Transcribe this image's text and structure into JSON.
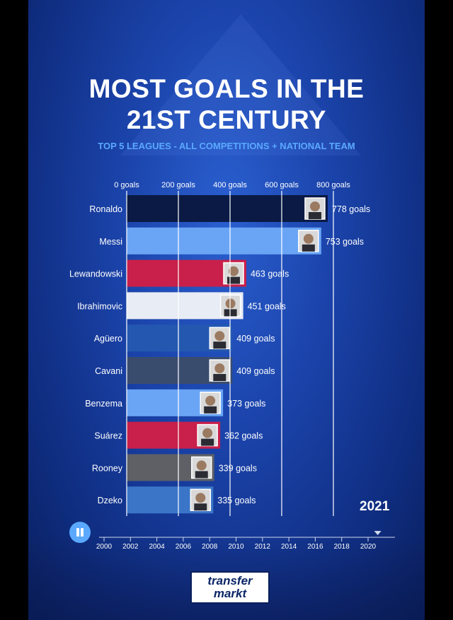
{
  "title_line1": "MOST GOALS IN THE",
  "title_line2": "21ST CENTURY",
  "subtitle": "TOP 5 LEAGUES - ALL COMPETITIONS + NATIONAL TEAM",
  "current_year": "2021",
  "logo": {
    "line1": "transfer",
    "line2": "markt"
  },
  "colors": {
    "subtitle": "#5aa9ff",
    "gridline": "#ffffff",
    "pause_button": "#5aa9ff"
  },
  "chart_data": {
    "type": "bar",
    "orientation": "horizontal",
    "x_ticks": [
      0,
      200,
      400,
      600,
      800
    ],
    "x_tick_labels": [
      "0 goals",
      "200 goals",
      "400 goals",
      "600 goals",
      "800 goals"
    ],
    "xlim": [
      0,
      800
    ],
    "grid": true,
    "categories": [
      "Ronaldo",
      "Messi",
      "Lewandowski",
      "Ibrahimovic",
      "Agüero",
      "Cavani",
      "Benzema",
      "Suárez",
      "Rooney",
      "Dzeko"
    ],
    "values": [
      778,
      753,
      463,
      451,
      409,
      409,
      373,
      362,
      339,
      335
    ],
    "value_labels": [
      "778 goals",
      "753 goals",
      "463 goals",
      "451 goals",
      "409 goals",
      "409 goals",
      "373 goals",
      "362 goals",
      "339 goals",
      "335 goals"
    ],
    "bar_colors": [
      "#0a1a44",
      "#6aa5f5",
      "#c8204a",
      "#e8ecf4",
      "#2458b0",
      "#3a4c6e",
      "#6aa5f5",
      "#c8204a",
      "#5e6066",
      "#3a75c8"
    ],
    "timeline": {
      "ticks": [
        "2000",
        "2002",
        "2004",
        "2006",
        "2008",
        "2010",
        "2012",
        "2014",
        "2016",
        "2018",
        "2020"
      ],
      "current": "2021"
    }
  }
}
